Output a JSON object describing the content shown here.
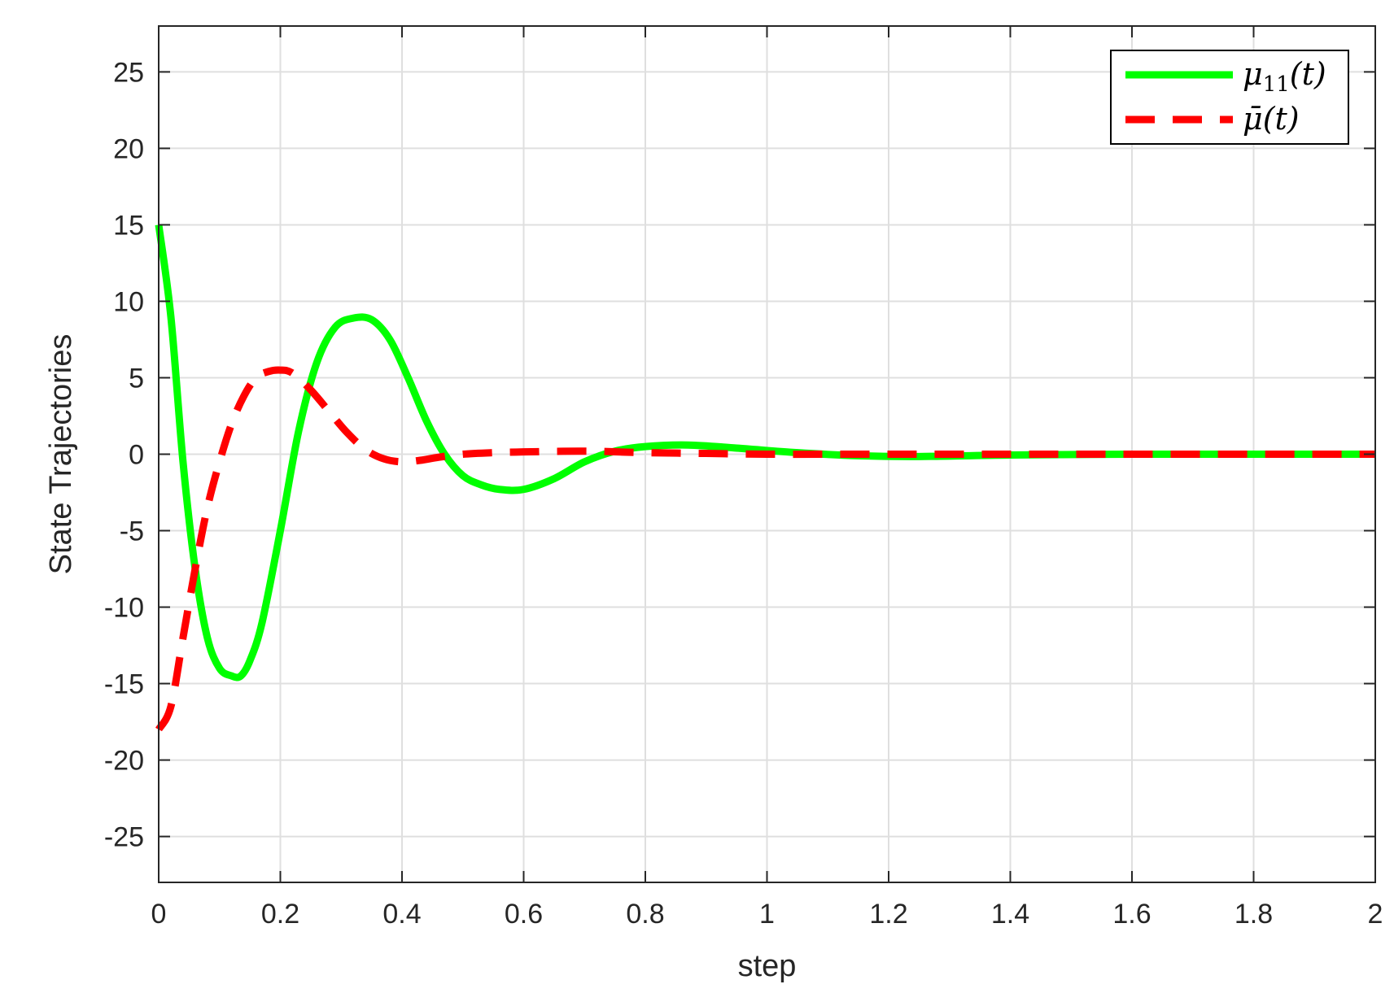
{
  "chart_data": {
    "type": "line",
    "title": "",
    "xlabel": "step",
    "ylabel": "State Trajectories",
    "xlim": [
      0,
      2
    ],
    "ylim": [
      -28,
      28
    ],
    "xticks": [
      0,
      0.2,
      0.4,
      0.6,
      0.8,
      1,
      1.2,
      1.4,
      1.6,
      1.8,
      2
    ],
    "xtick_labels": [
      "0",
      "0.2",
      "0.4",
      "0.6",
      "0.8",
      "1",
      "1.2",
      "1.4",
      "1.6",
      "1.8",
      "2"
    ],
    "yticks": [
      25,
      20,
      15,
      10,
      5,
      0,
      -5,
      -10,
      -15,
      -20,
      -25
    ],
    "ytick_labels": [
      "25",
      "20",
      "15",
      "10",
      "5",
      "0",
      "-5",
      "-10",
      "-15",
      "-20",
      "-25"
    ],
    "grid": true,
    "legend_position": "top-right",
    "series": [
      {
        "name": "μ11(t)",
        "legend_main": "μ",
        "legend_sub": "11",
        "legend_tail": "(t)",
        "color": "#00ff00",
        "style": "solid",
        "x": [
          0,
          0.02,
          0.04,
          0.06,
          0.08,
          0.1,
          0.12,
          0.135,
          0.15,
          0.17,
          0.2,
          0.23,
          0.26,
          0.29,
          0.32,
          0.35,
          0.38,
          0.41,
          0.44,
          0.47,
          0.5,
          0.53,
          0.56,
          0.6,
          0.65,
          0.7,
          0.75,
          0.8,
          0.87,
          0.95,
          1.05,
          1.15,
          1.25,
          1.4,
          1.6,
          1.8,
          2
        ],
        "y": [
          15,
          9,
          -0.5,
          -7.5,
          -12,
          -14,
          -14.5,
          -14.5,
          -13.5,
          -11,
          -5,
          1.5,
          6,
          8.3,
          8.9,
          8.8,
          7.5,
          5,
          2.2,
          0,
          -1.4,
          -2,
          -2.3,
          -2.3,
          -1.6,
          -0.5,
          0.2,
          0.5,
          0.6,
          0.4,
          0.1,
          -0.1,
          -0.15,
          -0.05,
          0,
          0,
          0
        ]
      },
      {
        "name": "μ̄(t)",
        "legend_main": "μ̄",
        "legend_sub": "",
        "legend_tail": "(t)",
        "color": "#ff0000",
        "style": "dashed",
        "x": [
          0,
          0.02,
          0.04,
          0.06,
          0.08,
          0.1,
          0.12,
          0.14,
          0.16,
          0.18,
          0.2,
          0.22,
          0.25,
          0.28,
          0.31,
          0.34,
          0.37,
          0.4,
          0.43,
          0.46,
          0.5,
          0.55,
          0.6,
          0.7,
          0.8,
          0.9,
          1,
          1.2,
          1.5,
          2
        ],
        "y": [
          -18,
          -16.5,
          -12,
          -7.5,
          -3.5,
          -0.5,
          2,
          3.8,
          5,
          5.4,
          5.5,
          5.3,
          4.2,
          2.8,
          1.4,
          0.3,
          -0.3,
          -0.5,
          -0.4,
          -0.2,
          0,
          0.1,
          0.15,
          0.2,
          0.1,
          0.05,
          0,
          0,
          0,
          0
        ]
      }
    ]
  }
}
